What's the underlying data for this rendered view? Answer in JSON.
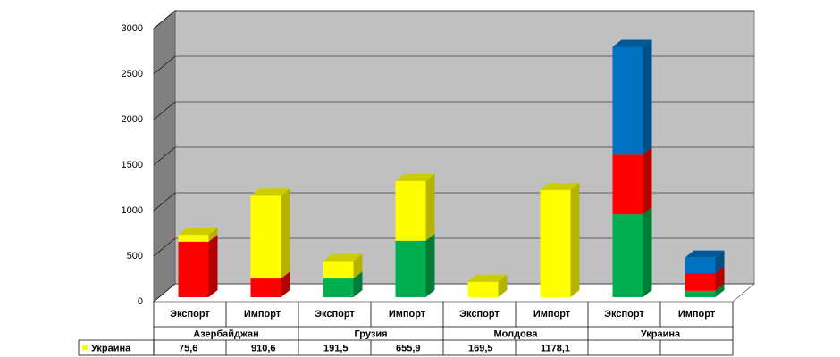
{
  "chart_data": {
    "type": "bar3d-stacked",
    "categories": [
      "Экспорт",
      "Импорт",
      "Экспорт",
      "Импорт",
      "Экспорт",
      "Импорт",
      "Экспорт",
      "Импорт"
    ],
    "groups": [
      "Азербайджан",
      "Грузия",
      "Молдова",
      "Украина"
    ],
    "series": [
      {
        "color": "#00b050",
        "values": [
          null,
          null,
          205,
          620,
          null,
          null,
          910,
          70
        ]
      },
      {
        "color": "#ff0000",
        "values": [
          610,
          205,
          null,
          null,
          null,
          null,
          655,
          195
        ]
      },
      {
        "name": "Украина",
        "color": "#ffff00",
        "values": [
          75.6,
          910.6,
          191.5,
          655.9,
          169.5,
          1178.1,
          null,
          null
        ],
        "value_labels": [
          "75,6",
          "910,6",
          "191,5",
          "655,9",
          "169,5",
          "1178,1",
          null,
          null
        ]
      },
      {
        "color": "#0070c0",
        "values": [
          null,
          null,
          null,
          null,
          null,
          null,
          1185,
          170
        ]
      }
    ],
    "ylim": [
      0,
      3000
    ],
    "yticks": [
      0,
      500,
      1000,
      1500,
      2000,
      2500,
      3000
    ],
    "grid": true
  }
}
